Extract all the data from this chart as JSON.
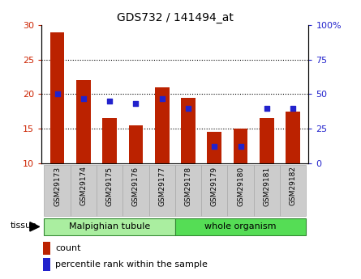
{
  "title": "GDS732 / 141494_at",
  "samples": [
    "GSM29173",
    "GSM29174",
    "GSM29175",
    "GSM29176",
    "GSM29177",
    "GSM29178",
    "GSM29179",
    "GSM29180",
    "GSM29181",
    "GSM29182"
  ],
  "counts": [
    29.0,
    22.0,
    16.5,
    15.5,
    21.0,
    19.5,
    14.5,
    15.0,
    16.5,
    17.5
  ],
  "percentile": [
    50,
    47,
    45,
    43,
    47,
    40,
    12,
    12,
    40,
    40
  ],
  "ylim_left": [
    10,
    30
  ],
  "ylim_right": [
    0,
    100
  ],
  "yticks_left": [
    10,
    15,
    20,
    25,
    30
  ],
  "yticks_right": [
    0,
    25,
    50,
    75,
    100
  ],
  "bar_color": "#bb2200",
  "dot_color": "#2222cc",
  "bar_bottom": 10,
  "tissue_groups": [
    {
      "label": "Malpighian tubule",
      "start": 0,
      "end": 5,
      "color": "#aaeea0"
    },
    {
      "label": "whole organism",
      "start": 5,
      "end": 10,
      "color": "#55dd55"
    }
  ],
  "legend_count_label": "count",
  "legend_pct_label": "percentile rank within the sample",
  "tissue_label": "tissue",
  "tick_label_color_left": "#cc2200",
  "tick_label_color_right": "#2222cc",
  "bar_width": 0.55,
  "xlabel_bg": "#cccccc",
  "xlabel_edge": "#aaaaaa"
}
